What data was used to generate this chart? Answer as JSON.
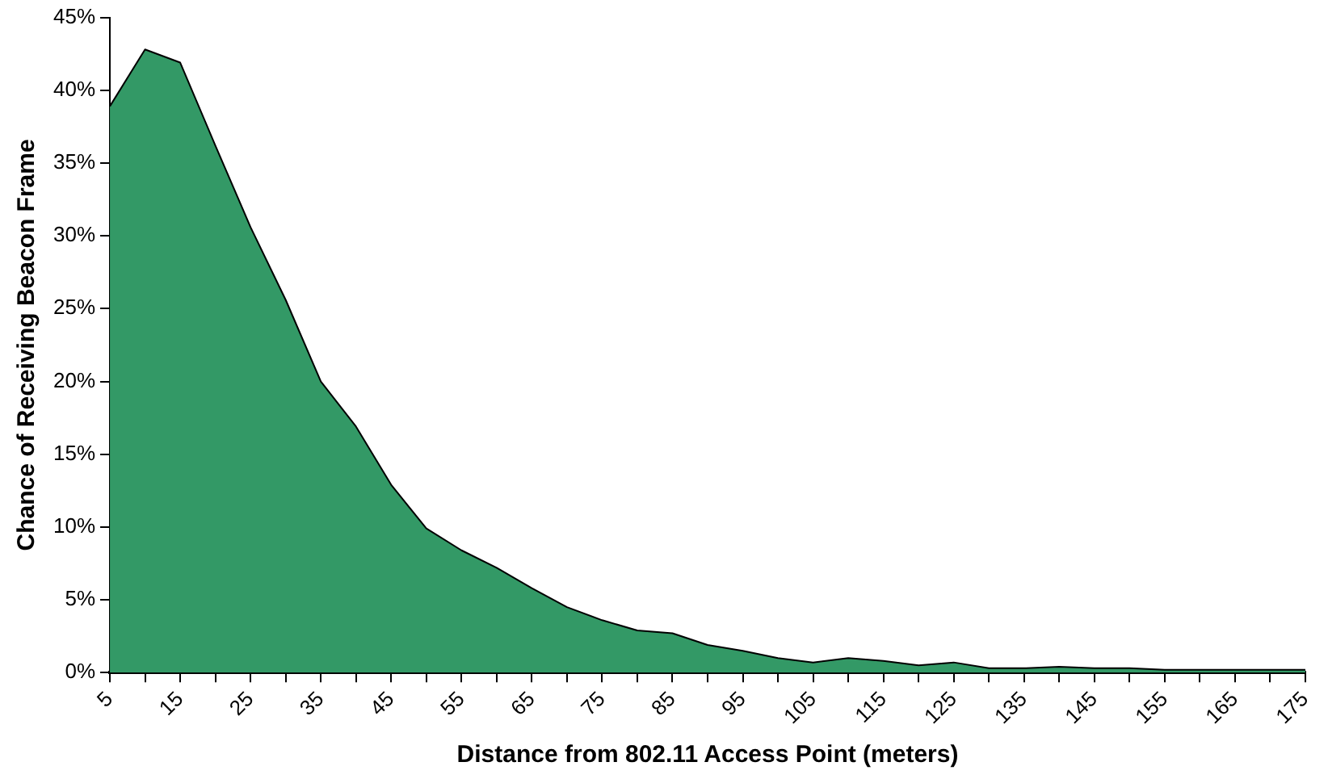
{
  "chart_data": {
    "type": "area",
    "xlabel": "Distance from 802.11 Access Point (meters)",
    "ylabel": "Chance of Receiving Beacon Frame",
    "categories": [
      "5",
      null,
      "15",
      null,
      "25",
      null,
      "35",
      null,
      "45",
      null,
      "55",
      null,
      "65",
      null,
      "75",
      null,
      "85",
      null,
      "95",
      null,
      "105",
      null,
      "115",
      null,
      "125",
      null,
      "135",
      null,
      "145",
      null,
      "155",
      null,
      "165",
      null,
      "175"
    ],
    "series": [
      {
        "color": "#339966",
        "values": [
          38.9,
          42.8,
          41.9,
          36.2,
          30.6,
          25.6,
          20.0,
          16.9,
          12.9,
          9.9,
          8.4,
          7.2,
          5.8,
          4.5,
          3.6,
          2.9,
          2.7,
          1.9,
          1.5,
          1.0,
          0.7,
          1.0,
          0.8,
          0.5,
          0.7,
          0.3,
          0.3,
          0.4,
          0.3,
          0.3,
          0.2,
          0.2,
          0.2,
          0.2,
          0.2
        ]
      }
    ],
    "ylim": [
      0,
      45
    ],
    "yticks": [
      {
        "value": 0,
        "label": "0%"
      },
      {
        "value": 5,
        "label": "5%"
      },
      {
        "value": 10,
        "label": "10%"
      },
      {
        "value": 15,
        "label": "15%"
      },
      {
        "value": 20,
        "label": "20%"
      },
      {
        "value": 25,
        "label": "25%"
      },
      {
        "value": 30,
        "label": "30%"
      },
      {
        "value": 35,
        "label": "35%"
      },
      {
        "value": 40,
        "label": "40%"
      },
      {
        "value": 45,
        "label": "45%"
      }
    ],
    "grid": false,
    "legend": false
  }
}
